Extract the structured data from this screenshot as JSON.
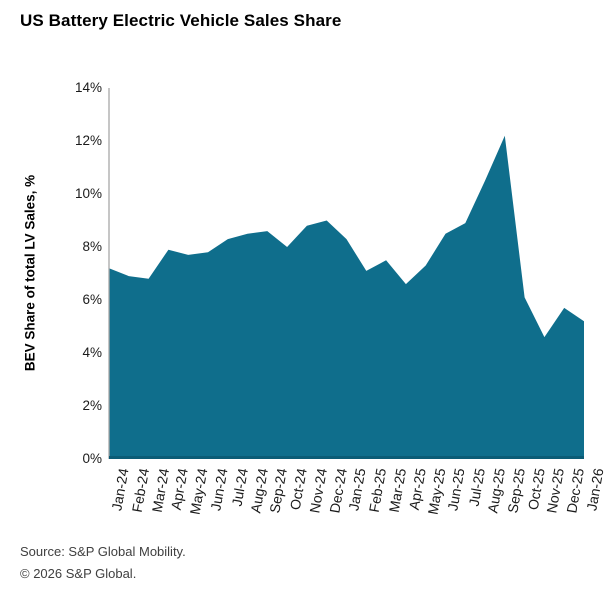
{
  "title": "US Battery Electric Vehicle Sales Share",
  "source": {
    "line1": "Source: S&P Global Mobility.",
    "line2": "© 2026 S&P Global."
  },
  "colors": {
    "area_fill": "#0F6E8C",
    "x_axis_line": "#0B5C76",
    "y_axis_line": "#A8A8A8",
    "text": "#000000",
    "source_text": "#404040"
  },
  "chart_data": {
    "type": "area",
    "title": "US Battery Electric Vehicle Sales Share",
    "xlabel": "",
    "ylabel": "BEV Share of total LV Sales, %",
    "ylim": [
      0,
      14
    ],
    "ytick_step": 2,
    "ytick_labels": [
      "0%",
      "2%",
      "4%",
      "6%",
      "8%",
      "10%",
      "12%",
      "14%"
    ],
    "grid": false,
    "legend": "none",
    "categories": [
      "Jan-24",
      "Feb-24",
      "Mar-24",
      "Apr-24",
      "May-24",
      "Jun-24",
      "Jul-24",
      "Aug-24",
      "Sep-24",
      "Oct-24",
      "Nov-24",
      "Dec-24",
      "Jan-25",
      "Feb-25",
      "Mar-25",
      "Apr-25",
      "May-25",
      "Jun-25",
      "Jul-25",
      "Aug-25",
      "Sep-25",
      "Oct-25",
      "Nov-25",
      "Dec-25",
      "Jan-26"
    ],
    "values": [
      7.2,
      6.9,
      6.8,
      7.9,
      7.7,
      7.8,
      8.3,
      8.5,
      8.6,
      8.0,
      8.8,
      9.0,
      8.3,
      7.1,
      7.5,
      6.6,
      7.3,
      8.5,
      8.9,
      10.5,
      12.2,
      6.1,
      4.6,
      5.7,
      5.2
    ]
  }
}
